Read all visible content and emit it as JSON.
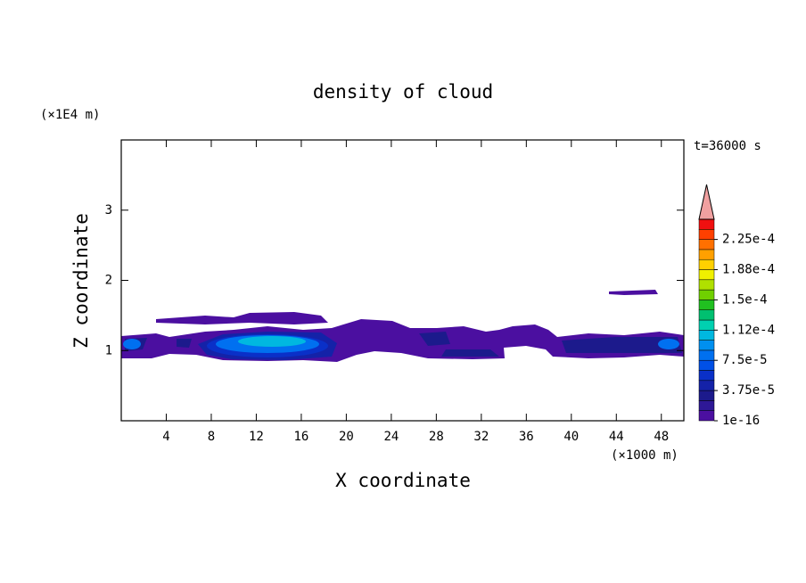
{
  "chart_data": {
    "type": "contour",
    "title": "density of cloud",
    "x_label": "X coordinate",
    "y_label": "Z coordinate",
    "x_unit": "(×1000 m)",
    "y_unit": "(×1E4 m)",
    "time_label": "t=36000 s",
    "xlim": [
      0,
      50
    ],
    "xticks": [
      4,
      8,
      12,
      16,
      20,
      24,
      28,
      32,
      36,
      40,
      44,
      48
    ],
    "ylim": [
      0,
      4
    ],
    "yticks": [
      1,
      2,
      3
    ],
    "colorbar": {
      "lim": [
        1e-16,
        0.00025
      ],
      "ticks": [
        {
          "value": 1e-16,
          "label": "1e-16"
        },
        {
          "value": 3.75e-05,
          "label": "3.75e-5"
        },
        {
          "value": 7.5e-05,
          "label": "7.5e-5"
        },
        {
          "value": 0.0001125,
          "label": "1.12e-4"
        },
        {
          "value": 0.00015,
          "label": "1.5e-4"
        },
        {
          "value": 0.0001875,
          "label": "1.88e-4"
        },
        {
          "value": 0.000225,
          "label": "2.25e-4"
        }
      ],
      "colors": [
        "#4b0fa0",
        "#2e1896",
        "#1c1a8c",
        "#1422a8",
        "#0a30c8",
        "#0050e6",
        "#0070f0",
        "#0090f0",
        "#00b8e0",
        "#00d0b0",
        "#00c070",
        "#20c020",
        "#70d000",
        "#b0e000",
        "#f0f000",
        "#ffd000",
        "#ffa000",
        "#ff7000",
        "#ff4000",
        "#f01010"
      ],
      "extend_color": "#f0a0a0"
    }
  }
}
